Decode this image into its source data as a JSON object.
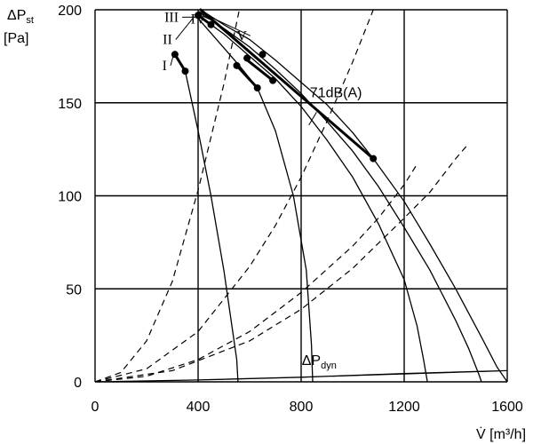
{
  "chart_data": {
    "type": "line",
    "title": "",
    "xlabel": "V̇ [m³/h]",
    "ylabel_line1": "ΔPst",
    "ylabel_line2": "[Pa]",
    "xlim": [
      0,
      1600
    ],
    "ylim": [
      0,
      200
    ],
    "x_ticks": [
      0,
      400,
      800,
      1200,
      1600
    ],
    "y_ticks": [
      0,
      50,
      100,
      150,
      200
    ],
    "grid": true,
    "series": [
      {
        "name": "I",
        "kind": "fan-curve",
        "x": [
          310,
          350,
          400,
          450,
          500,
          550,
          555
        ],
        "y": [
          176,
          167,
          135,
          100,
          60,
          12,
          0
        ],
        "label_at": [
          300,
          170
        ]
      },
      {
        "name": "II",
        "kind": "fan-curve",
        "x": [
          390,
          560,
          630,
          700,
          770,
          820,
          840,
          845
        ],
        "y": [
          197,
          170,
          158,
          135,
          100,
          60,
          20,
          0
        ],
        "label_at": [
          320,
          184
        ]
      },
      {
        "name": "III",
        "kind": "fan-curve",
        "x": [
          400,
          500,
          600,
          700,
          800,
          900,
          1000,
          1100,
          1200,
          1250,
          1275,
          1290
        ],
        "y": [
          197,
          187,
          175,
          163,
          148,
          130,
          110,
          85,
          55,
          30,
          12,
          0
        ],
        "label_at": [
          345,
          196
        ]
      },
      {
        "name": "IV",
        "kind": "fan-curve",
        "x": [
          400,
          500,
          600,
          700,
          800,
          900,
          1000,
          1100,
          1200,
          1300,
          1400,
          1450,
          1490,
          1500
        ],
        "y": [
          199,
          190,
          180,
          168,
          155,
          140,
          124,
          105,
          83,
          60,
          33,
          18,
          4,
          0
        ],
        "label_at": [
          450,
          195
        ]
      },
      {
        "name": "V",
        "kind": "fan-curve",
        "x": [
          410,
          500,
          600,
          700,
          800,
          900,
          1000,
          1080,
          1200,
          1300,
          1400,
          1500,
          1560,
          1600
        ],
        "y": [
          200,
          192,
          184,
          173,
          161,
          149,
          134,
          120,
          97,
          74,
          50,
          24,
          8,
          0
        ],
        "label_at": [
          610,
          186
        ]
      }
    ],
    "system_lines": [
      {
        "x": [
          0,
          100,
          200,
          300,
          400,
          500,
          560
        ],
        "y": [
          0,
          5,
          22,
          54,
          103,
          160,
          200
        ]
      },
      {
        "x": [
          0,
          200,
          400,
          600,
          700,
          800,
          900,
          1000,
          1080
        ],
        "y": [
          0,
          7,
          27,
          62,
          84,
          110,
          140,
          172,
          200
        ]
      },
      {
        "x": [
          0,
          200,
          400,
          600,
          800,
          1000,
          1100,
          1200,
          1250
        ],
        "y": [
          0,
          3,
          12,
          27,
          48,
          73,
          88,
          106,
          117
        ]
      },
      {
        "x": [
          0,
          300,
          600,
          800,
          1000,
          1200,
          1300,
          1400,
          1450
        ],
        "y": [
          0,
          6,
          22,
          39,
          61,
          88,
          102,
          120,
          128
        ]
      }
    ],
    "dynamic_pressure_line": {
      "x": [
        0,
        400,
        800,
        1200,
        1600
      ],
      "y": [
        0,
        1,
        2.5,
        4.5,
        6
      ]
    },
    "annotations": [
      {
        "text": "71dB(A)",
        "at": [
          935,
          153
        ]
      },
      {
        "text": "ΔP",
        "subscript": "dyn",
        "at": [
          870,
          9
        ]
      }
    ],
    "iso_segments": [
      {
        "x": [
          310,
          350
        ],
        "y": [
          176,
          167
        ]
      },
      {
        "x": [
          550,
          630
        ],
        "y": [
          170,
          158
        ]
      },
      {
        "x": [
          400,
          450
        ],
        "y": [
          197,
          192
        ]
      },
      {
        "x": [
          590,
          690
        ],
        "y": [
          173,
          162
        ]
      },
      {
        "x": [
          410,
          1080
        ],
        "y": [
          200,
          120
        ]
      }
    ],
    "points": [
      {
        "x": [
          310,
          350
        ],
        "y": [
          176,
          167
        ]
      },
      {
        "x": [
          550,
          630
        ],
        "y": [
          170,
          158
        ]
      },
      {
        "x": [
          400,
          450
        ],
        "y": [
          197,
          192
        ]
      },
      {
        "x": [
          590,
          690
        ],
        "y": [
          174,
          162
        ]
      },
      {
        "x": [
          650,
          1080
        ],
        "y": [
          176,
          120
        ]
      }
    ]
  }
}
